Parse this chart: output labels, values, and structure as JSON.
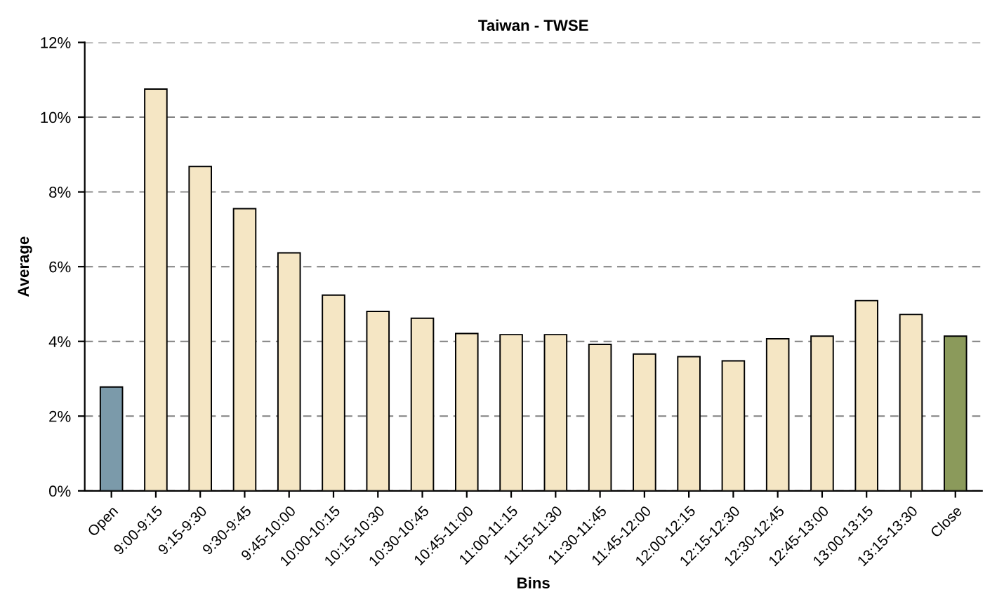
{
  "chart_data": {
    "type": "bar",
    "title": "Taiwan - TWSE",
    "xlabel": "Bins",
    "ylabel": "Average",
    "categories": [
      "Open",
      "9:00-9:15",
      "9:15-9:30",
      "9:30-9:45",
      "9:45-10:00",
      "10:00-10:15",
      "10:15-10:30",
      "10:30-10:45",
      "10:45-11:00",
      "11:00-11:15",
      "11:15-11:30",
      "11:30-11:45",
      "11:45-12:00",
      "12:00-12:15",
      "12:15-12:30",
      "12:30-12:45",
      "12:45-13:00",
      "13:00-13:15",
      "13:15-13:30",
      "Close"
    ],
    "values": [
      2.78,
      10.75,
      8.68,
      7.55,
      6.37,
      5.24,
      4.8,
      4.62,
      4.21,
      4.18,
      4.18,
      3.92,
      3.66,
      3.59,
      3.48,
      4.07,
      4.14,
      5.09,
      4.72,
      4.14
    ],
    "colors": [
      "#7b9aaa",
      "#f5e6c4",
      "#f5e6c4",
      "#f5e6c4",
      "#f5e6c4",
      "#f5e6c4",
      "#f5e6c4",
      "#f5e6c4",
      "#f5e6c4",
      "#f5e6c4",
      "#f5e6c4",
      "#f5e6c4",
      "#f5e6c4",
      "#f5e6c4",
      "#f5e6c4",
      "#f5e6c4",
      "#f5e6c4",
      "#f5e6c4",
      "#f5e6c4",
      "#8b9a5b"
    ],
    "ylim": [
      0,
      12
    ],
    "yticks": [
      {
        "value": 0,
        "label": "0%"
      },
      {
        "value": 2,
        "label": "2%"
      },
      {
        "value": 4,
        "label": "4%"
      },
      {
        "value": 6,
        "label": "6%"
      },
      {
        "value": 8,
        "label": "8%"
      },
      {
        "value": 10,
        "label": "10%"
      },
      {
        "value": 12,
        "label": "12%"
      }
    ],
    "grid": "y"
  }
}
